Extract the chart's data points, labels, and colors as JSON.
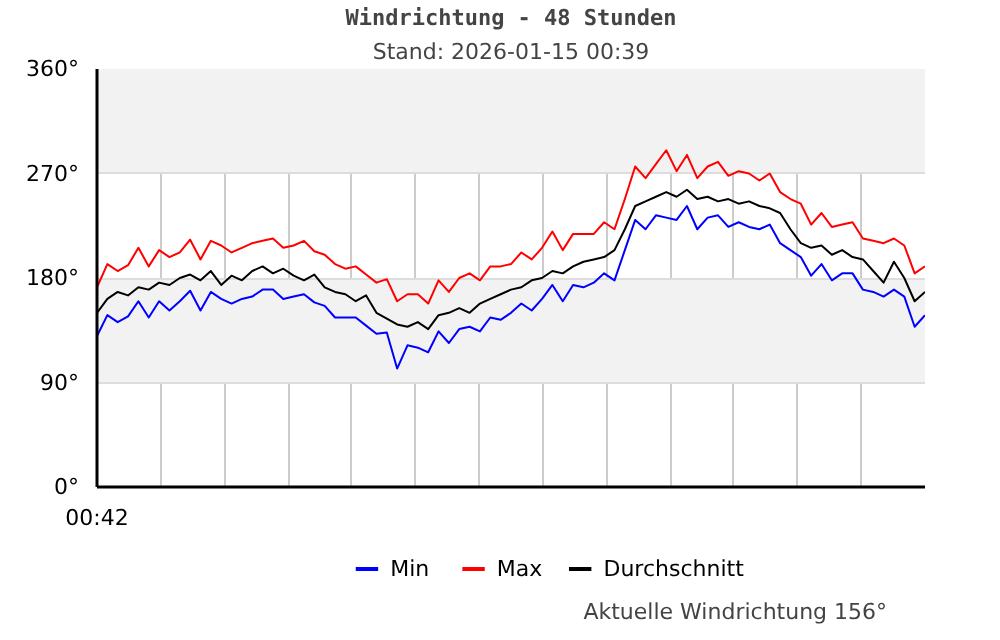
{
  "chart_data": {
    "type": "line",
    "title": "Windrichtung - 48 Stunden",
    "subtitle": "Stand: 2026-01-15 00:39",
    "categories": [
      "00:42",
      null,
      null,
      null,
      null,
      null,
      null,
      null,
      null,
      null,
      null,
      null,
      null,
      null,
      null,
      null,
      null,
      null,
      null,
      null,
      null,
      null,
      null,
      null,
      null,
      null,
      null,
      null,
      null,
      null,
      null,
      null,
      null,
      null,
      null,
      null,
      null,
      null,
      null,
      null,
      null,
      null,
      null,
      null,
      null,
      null,
      null,
      null,
      null,
      null,
      null,
      null,
      null,
      null,
      null,
      null,
      null,
      null,
      null,
      null,
      null,
      null,
      null,
      null,
      null,
      null,
      null,
      null,
      null,
      null,
      null,
      null,
      null,
      null,
      null,
      null,
      null,
      null,
      null,
      null,
      null
    ],
    "series": [
      {
        "name": "Min",
        "color": "#0000ff",
        "values": [
          130,
          148,
          142,
          147,
          160,
          146,
          160,
          152,
          160,
          169,
          152,
          168,
          162,
          158,
          162,
          164,
          170,
          170,
          162,
          164,
          166,
          159,
          156,
          146,
          146,
          146,
          139,
          132,
          133,
          102,
          122,
          120,
          116,
          134,
          124,
          136,
          138,
          134,
          146,
          144,
          150,
          158,
          152,
          162,
          174,
          160,
          174,
          172,
          176,
          184,
          178,
          204,
          230,
          222,
          234,
          232,
          230,
          242,
          222,
          232,
          234,
          224,
          228,
          224,
          222,
          226,
          210,
          204,
          198,
          182,
          192,
          178,
          184,
          184,
          170,
          168,
          164,
          170,
          164,
          138,
          148
        ]
      },
      {
        "name": "Max",
        "color": "#ff0000",
        "values": [
          172,
          192,
          186,
          191,
          206,
          190,
          204,
          198,
          202,
          213,
          196,
          212,
          208,
          202,
          206,
          210,
          212,
          214,
          206,
          208,
          212,
          203,
          200,
          192,
          188,
          190,
          183,
          176,
          179,
          160,
          166,
          166,
          158,
          178,
          168,
          180,
          184,
          178,
          190,
          190,
          192,
          202,
          196,
          206,
          220,
          204,
          218,
          218,
          218,
          228,
          222,
          248,
          276,
          266,
          278,
          290,
          272,
          286,
          266,
          276,
          280,
          268,
          272,
          270,
          264,
          270,
          254,
          248,
          244,
          226,
          236,
          224,
          226,
          228,
          214,
          212,
          210,
          214,
          208,
          184,
          190
        ]
      },
      {
        "name": "Durchschnitt",
        "color": "#000000",
        "values": [
          150,
          162,
          168,
          165,
          172,
          170,
          176,
          174,
          180,
          183,
          178,
          186,
          174,
          182,
          178,
          186,
          190,
          184,
          188,
          182,
          178,
          183,
          172,
          168,
          166,
          160,
          165,
          150,
          145,
          140,
          138,
          142,
          136,
          148,
          150,
          154,
          150,
          158,
          162,
          166,
          170,
          172,
          178,
          180,
          186,
          184,
          190,
          194,
          196,
          198,
          204,
          222,
          242,
          246,
          250,
          254,
          250,
          256,
          248,
          250,
          246,
          248,
          244,
          246,
          242,
          240,
          236,
          222,
          210,
          206,
          208,
          200,
          204,
          198,
          196,
          186,
          176,
          194,
          180,
          160,
          168
        ]
      }
    ],
    "ylim": [
      0,
      360
    ],
    "yticks": [
      {
        "value": 0,
        "label": "0°"
      },
      {
        "value": 90,
        "label": "90°"
      },
      {
        "value": 180,
        "label": "180°"
      },
      {
        "value": 270,
        "label": "270°"
      },
      {
        "value": 360,
        "label": "360°"
      }
    ],
    "grid": true,
    "legend": "bottom",
    "marker": "none",
    "line_style": "solid",
    "annotations": [
      "Aktuelle Windrichtung 156°"
    ]
  }
}
